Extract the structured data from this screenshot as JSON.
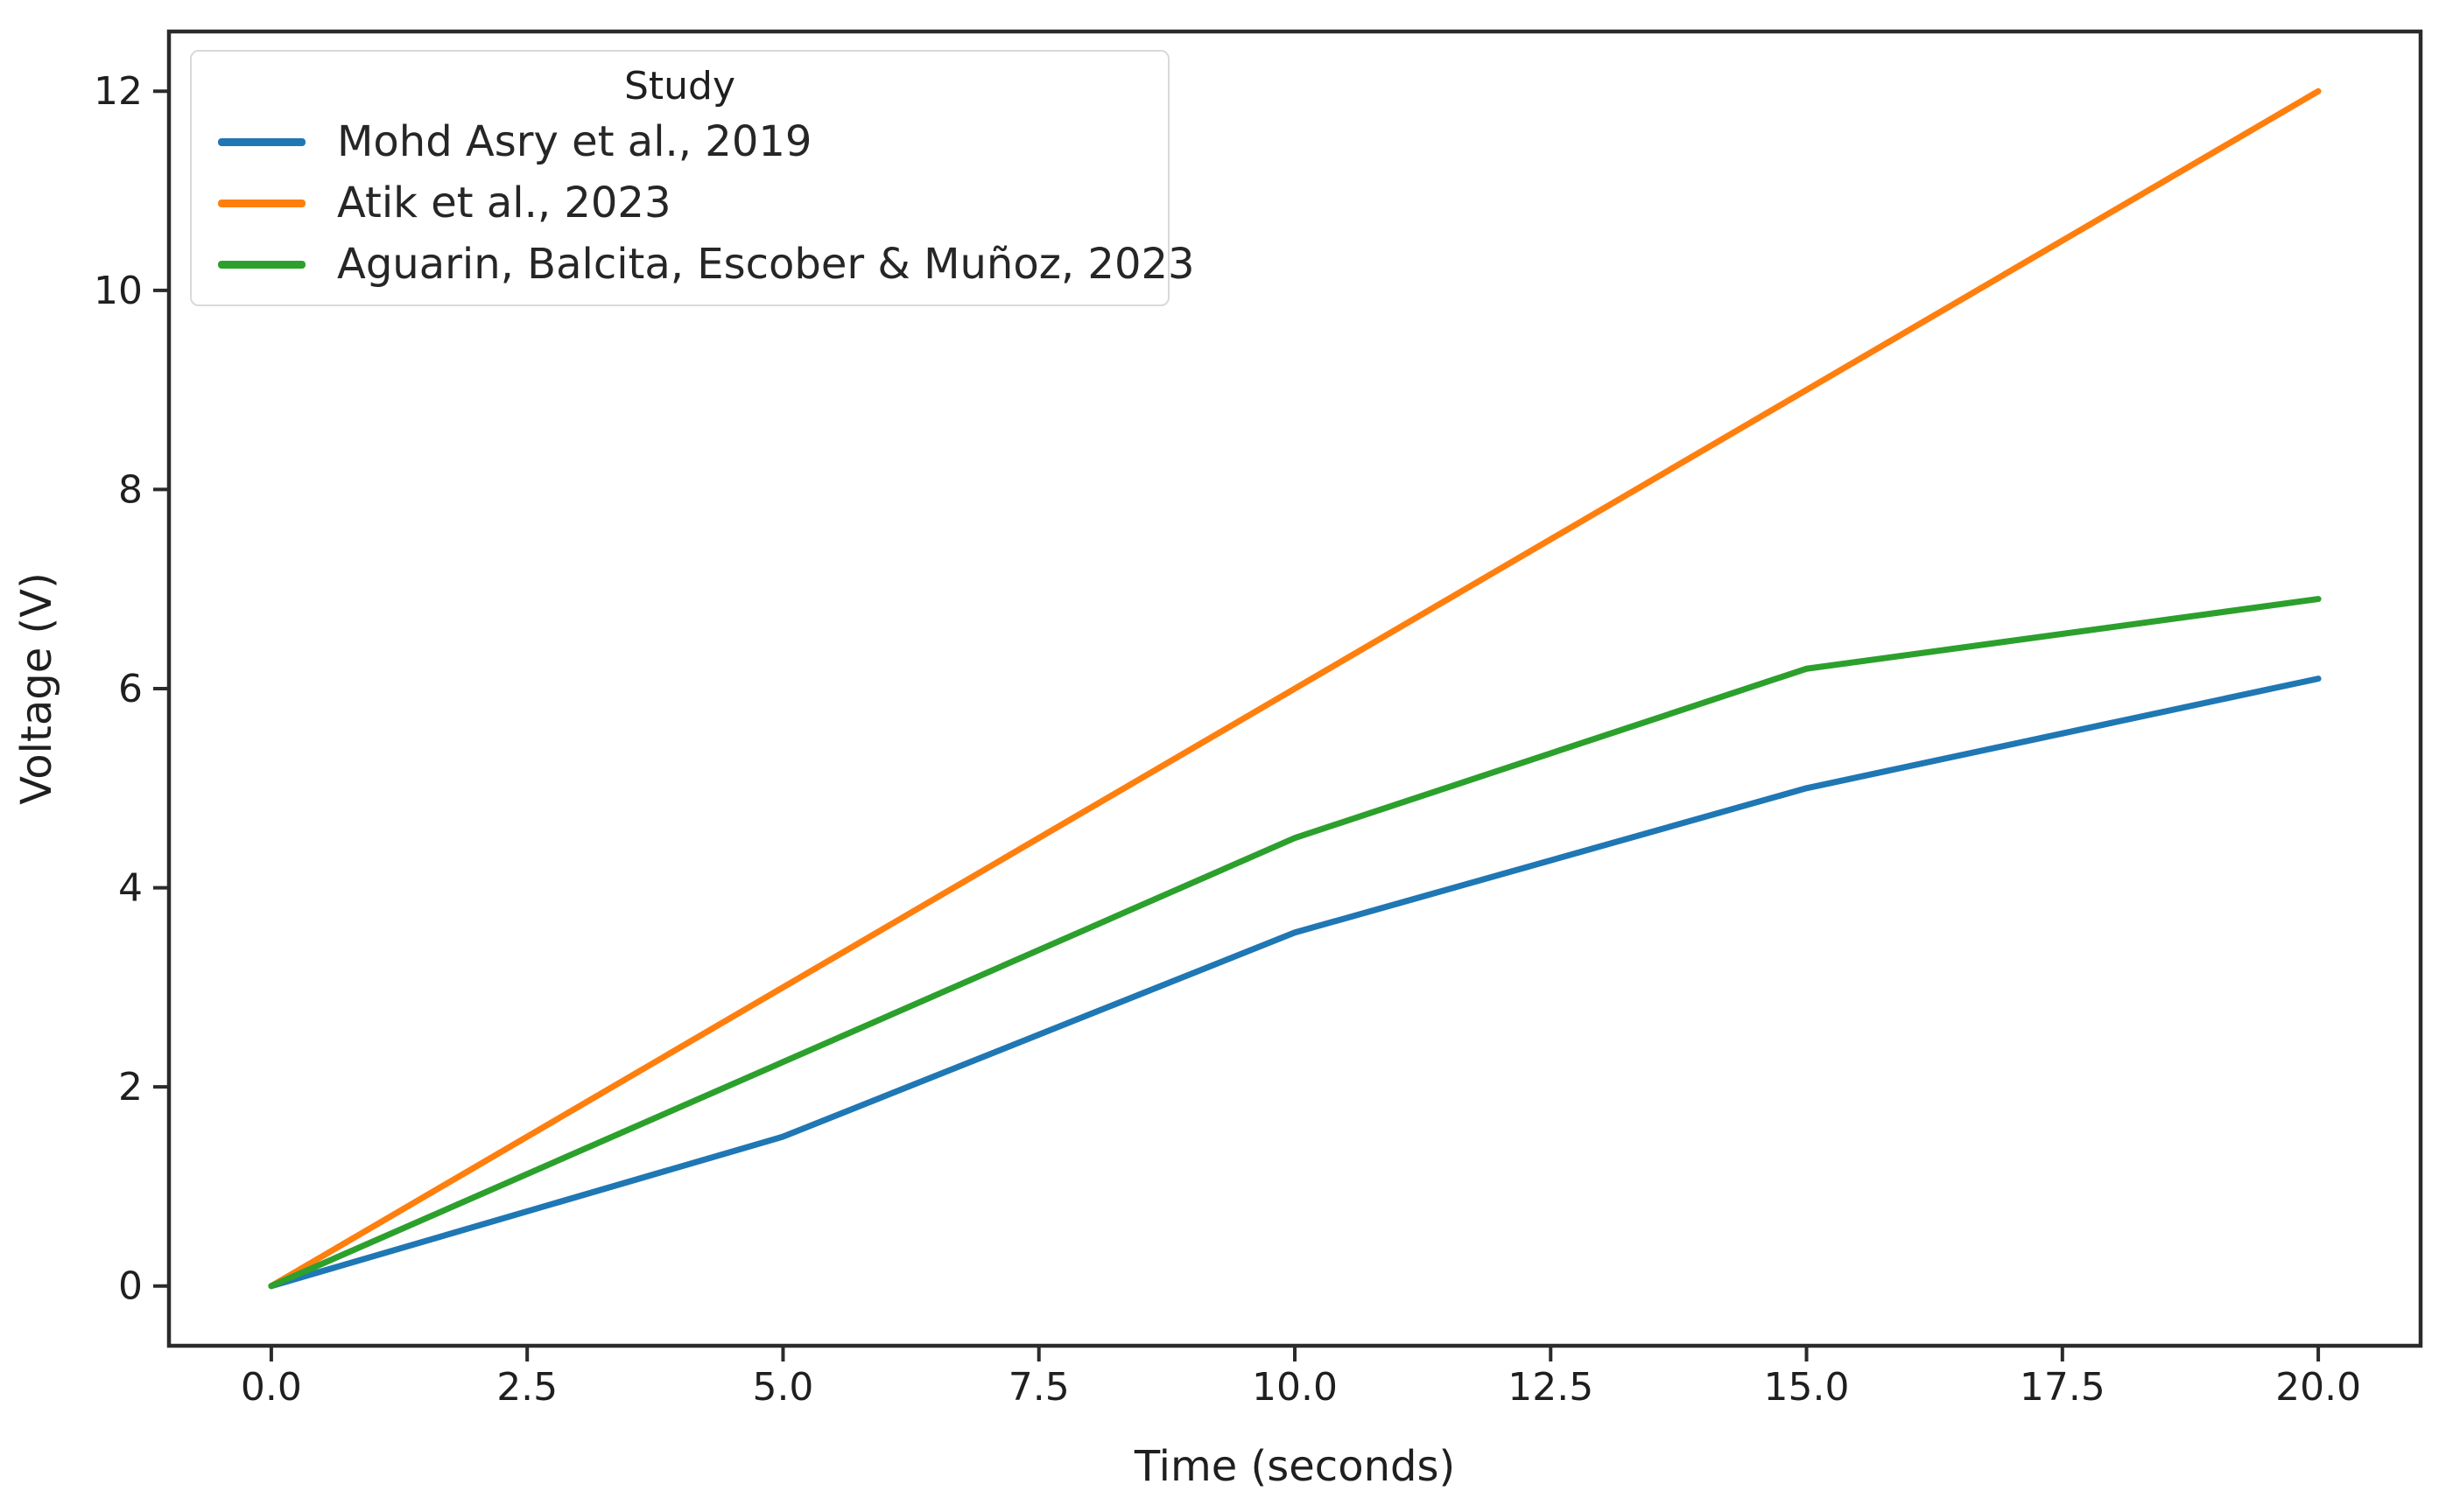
{
  "chart_data": {
    "type": "line",
    "title": "",
    "xlabel": "Time (seconds)",
    "ylabel": "Voltage (V)",
    "x": [
      0,
      5,
      10,
      15,
      20
    ],
    "series": [
      {
        "name": "Mohd Asry et al., 2019",
        "color": "#1f77b4",
        "values": [
          0,
          1.5,
          3.55,
          5.0,
          6.1
        ]
      },
      {
        "name": "Atik et al., 2023",
        "color": "#ff7f0e",
        "values": [
          0,
          3.0,
          6.0,
          9.0,
          12.0
        ]
      },
      {
        "name": "Aguarin, Balcita, Escober & Muñoz, 2023",
        "color": "#2ca02c",
        "values": [
          0,
          2.25,
          4.5,
          6.2,
          6.9
        ]
      }
    ],
    "legend": {
      "title": "Study",
      "position": "upper left"
    },
    "axes": {
      "xlim": [
        -1,
        21
      ],
      "ylim": [
        -0.6,
        12.6
      ],
      "xticks": {
        "values": [
          0,
          2.5,
          5,
          7.5,
          10,
          12.5,
          15,
          17.5,
          20
        ],
        "labels": [
          "0.0",
          "2.5",
          "5.0",
          "7.5",
          "10.0",
          "12.5",
          "15.0",
          "17.5",
          "20.0"
        ]
      },
      "yticks": {
        "values": [
          0,
          2,
          4,
          6,
          8,
          10,
          12
        ],
        "labels": [
          "0",
          "2",
          "4",
          "6",
          "8",
          "10",
          "12"
        ]
      },
      "grid": false
    },
    "colors": {
      "spine": "#2b2b2b",
      "text": "#1f1f1f"
    }
  }
}
